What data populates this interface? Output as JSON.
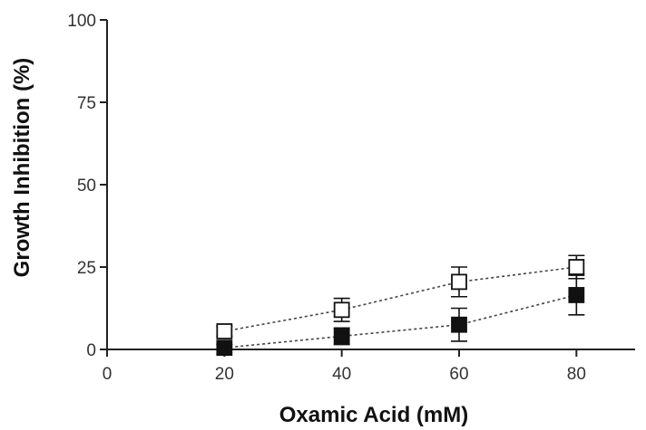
{
  "chart_data": {
    "type": "scatter",
    "xlabel": "Oxamic Acid (mM)",
    "ylabel": "Growth Inhibition (%)",
    "xlim": [
      0,
      90
    ],
    "ylim": [
      0,
      100
    ],
    "x_ticks": [
      "0",
      "20",
      "40",
      "60",
      "80"
    ],
    "y_ticks": [
      "0",
      "25",
      "50",
      "75",
      "100"
    ],
    "grid": false,
    "legend": "none",
    "x": [
      20,
      40,
      60,
      80
    ],
    "series": [
      {
        "marker": "open-square",
        "color": "#111111",
        "values": [
          5.5,
          12,
          20.5,
          25
        ],
        "errors": [
          1.5,
          3.5,
          4.5,
          3.5
        ]
      },
      {
        "marker": "filled-square",
        "color": "#111111",
        "values": [
          0.5,
          4,
          7.5,
          16.5
        ],
        "errors": [
          1.0,
          2.5,
          5.0,
          6.0
        ]
      }
    ]
  }
}
